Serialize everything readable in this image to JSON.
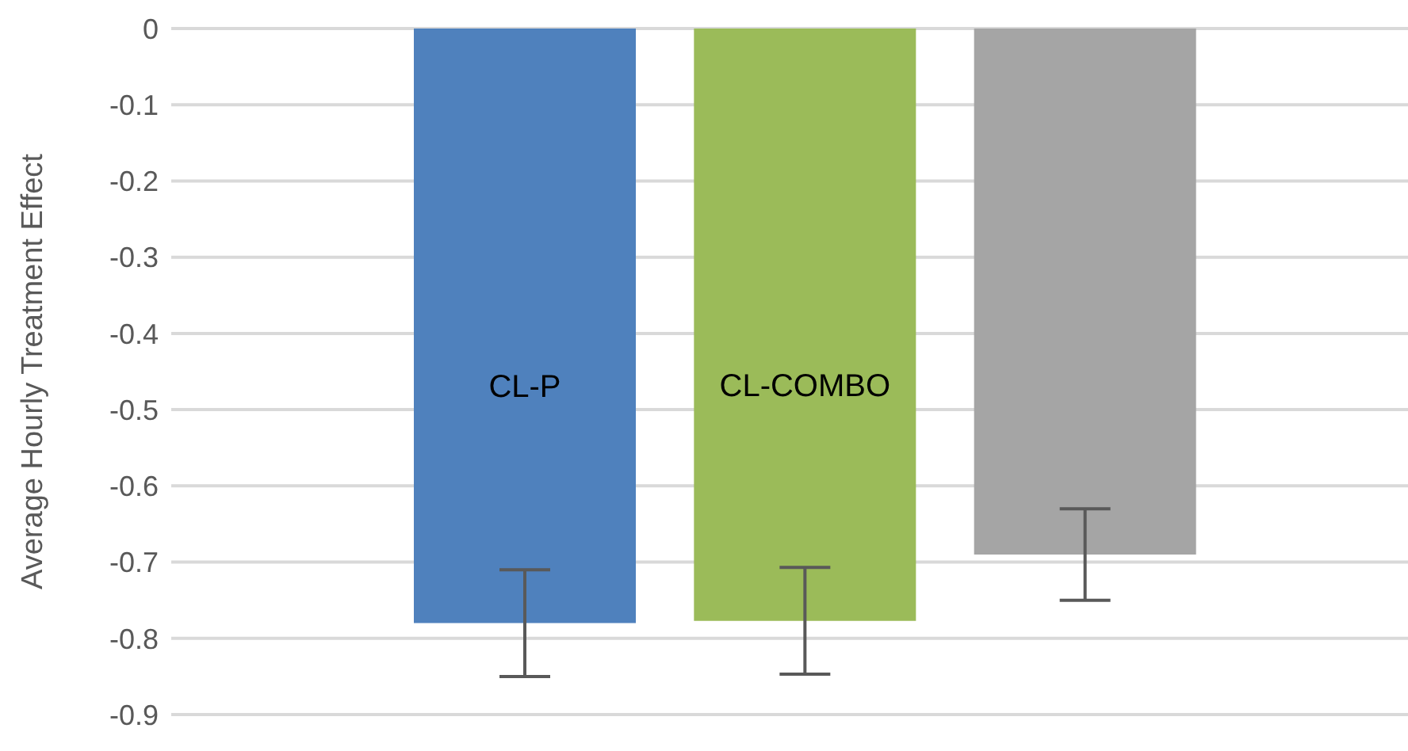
{
  "chart_data": {
    "type": "bar",
    "ylabel": "Average Hourly Treatment Effect",
    "categories": [
      "CL-P",
      "CL-COMBO",
      null
    ],
    "values": [
      -0.78,
      -0.777,
      -0.69
    ],
    "colors": [
      "#4f81bd",
      "#9bbb59",
      "#a5a5a5"
    ],
    "errors": [
      0.07,
      0.07,
      0.06
    ],
    "ylim": [
      -0.9,
      0
    ],
    "yticks": [
      0,
      -0.1,
      -0.2,
      -0.3,
      -0.4,
      -0.5,
      -0.6,
      -0.7,
      -0.8,
      -0.9
    ],
    "grid": "y",
    "tick_labels": "y"
  }
}
